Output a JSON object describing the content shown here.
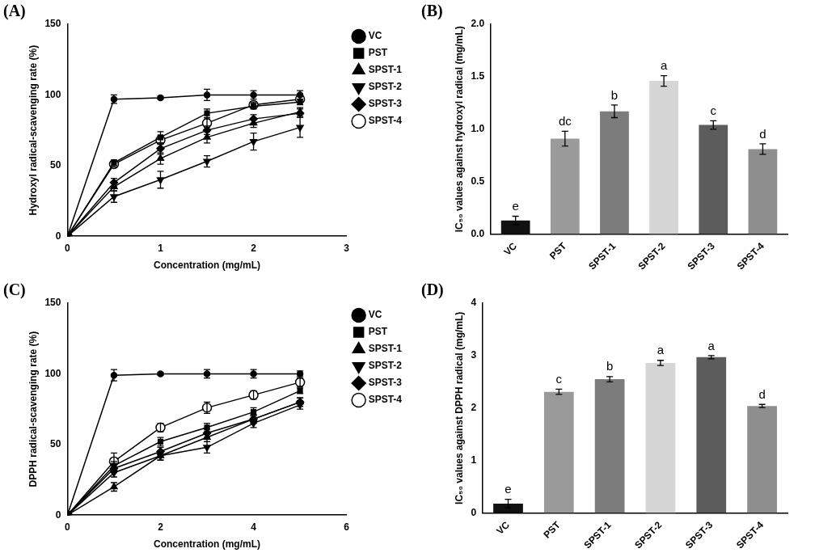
{
  "chart_data": [
    {
      "panel": "(A)",
      "type": "line",
      "x_label": "Concentration (mg/mL)",
      "y_label": "Hydroxyl radical-scavenging rate (%)",
      "x": [
        0,
        0.5,
        1,
        1.5,
        2,
        2.5
      ],
      "series": [
        {
          "name": "VC",
          "color": "#000000",
          "marker": "circle",
          "values": [
            0,
            97,
            98,
            100,
            100,
            100
          ],
          "errors": [
            0,
            3,
            1,
            4,
            3,
            3
          ]
        },
        {
          "name": "PST",
          "color": "#000000",
          "marker": "square",
          "values": [
            0,
            52,
            70,
            87,
            92,
            95
          ],
          "errors": [
            0,
            2,
            4,
            3,
            2,
            2
          ]
        },
        {
          "name": "SPST-1",
          "color": "#000000",
          "marker": "triangle",
          "values": [
            0,
            35,
            55,
            70,
            80,
            88
          ],
          "errors": [
            0,
            3,
            4,
            4,
            3,
            3
          ]
        },
        {
          "name": "SPST-2",
          "color": "#000000",
          "marker": "triangle_down",
          "values": [
            0,
            28,
            40,
            53,
            67,
            77
          ],
          "errors": [
            0,
            4,
            6,
            4,
            6,
            7
          ]
        },
        {
          "name": "SPST-3",
          "color": "#000000",
          "marker": "diamond",
          "values": [
            0,
            38,
            62,
            75,
            83,
            87
          ],
          "errors": [
            0,
            3,
            4,
            3,
            3,
            3
          ]
        },
        {
          "name": "SPST-4",
          "color": "#000000",
          "marker": "open_circle",
          "values": [
            0,
            51,
            68,
            80,
            93,
            97
          ],
          "errors": [
            0,
            2,
            3,
            3,
            2,
            2
          ]
        }
      ],
      "xlim": [
        0,
        3
      ],
      "xticks": [
        0,
        1,
        2,
        3
      ],
      "ylim": [
        0,
        150
      ],
      "yticks": [
        0,
        50,
        100,
        150
      ],
      "legend": "right",
      "grid": false
    },
    {
      "panel": "(B)",
      "type": "bar",
      "y_label": "IC₅₀ values against hydroxyl radical (mg/mL)",
      "categories": [
        "VC",
        "PST",
        "SPST-1",
        "SPST-2",
        "SPST-3",
        "SPST-4"
      ],
      "values": [
        0.13,
        0.91,
        1.17,
        1.46,
        1.04,
        0.81
      ],
      "errors": [
        0.04,
        0.07,
        0.06,
        0.05,
        0.04,
        0.05
      ],
      "letters": [
        "e",
        "dc",
        "b",
        "a",
        "c",
        "d"
      ],
      "colors": [
        "#111111",
        "#9a9a9a",
        "#7c7c7c",
        "#d6d6d6",
        "#5c5c5c",
        "#8e8e8e"
      ],
      "ylim": [
        0,
        2
      ],
      "yticks": [
        {
          "value": 0,
          "label": "0.0"
        },
        {
          "value": 0.5,
          "label": "0.5"
        },
        {
          "value": 1,
          "label": "1.0"
        },
        {
          "value": 1.5,
          "label": "1.5"
        },
        {
          "value": 2,
          "label": "2.0"
        }
      ],
      "grid": false
    },
    {
      "panel": "(C)",
      "type": "line",
      "x_label": "Concentration (mg/mL)",
      "y_label": "DPPH radical-scavenging rate (%)",
      "x": [
        0,
        1,
        2,
        3,
        4,
        5
      ],
      "series": [
        {
          "name": "VC",
          "color": "#000000",
          "marker": "circle",
          "values": [
            0,
            99,
            100,
            100,
            100,
            100
          ],
          "errors": [
            0,
            4,
            1,
            3,
            3,
            2
          ]
        },
        {
          "name": "PST",
          "color": "#000000",
          "marker": "square",
          "values": [
            0,
            35,
            52,
            62,
            73,
            88
          ],
          "errors": [
            0,
            3,
            3,
            3,
            3,
            2
          ]
        },
        {
          "name": "SPST-1",
          "color": "#000000",
          "marker": "triangle",
          "values": [
            0,
            20,
            42,
            55,
            68,
            80
          ],
          "errors": [
            0,
            3,
            3,
            3,
            3,
            3
          ]
        },
        {
          "name": "SPST-2",
          "color": "#000000",
          "marker": "triangle_down",
          "values": [
            0,
            30,
            42,
            48,
            65,
            78
          ],
          "errors": [
            0,
            3,
            3,
            4,
            3,
            3
          ]
        },
        {
          "name": "SPST-3",
          "color": "#000000",
          "marker": "diamond",
          "values": [
            0,
            33,
            45,
            58,
            68,
            80
          ],
          "errors": [
            0,
            3,
            3,
            3,
            3,
            3
          ]
        },
        {
          "name": "SPST-4",
          "color": "#000000",
          "marker": "open_circle",
          "values": [
            0,
            38,
            62,
            76,
            85,
            94
          ],
          "errors": [
            0,
            6,
            3,
            4,
            3,
            3
          ]
        }
      ],
      "xlim": [
        0,
        6
      ],
      "xticks": [
        0,
        2,
        4,
        6
      ],
      "ylim": [
        0,
        150
      ],
      "yticks": [
        0,
        50,
        100,
        150
      ],
      "legend": "right",
      "grid": false
    },
    {
      "panel": "(D)",
      "type": "bar",
      "y_label": "IC₅₀ values against DPPH radical (mg/mL)",
      "categories": [
        "VC",
        "PST",
        "SPST-1",
        "SPST-2",
        "SPST-3",
        "SPST-4"
      ],
      "values": [
        0.18,
        2.31,
        2.55,
        2.86,
        2.97,
        2.04
      ],
      "errors": [
        0.08,
        0.05,
        0.05,
        0.05,
        0.03,
        0.03
      ],
      "letters": [
        "e",
        "c",
        "b",
        "a",
        "a",
        "d"
      ],
      "colors": [
        "#111111",
        "#9a9a9a",
        "#7c7c7c",
        "#d6d6d6",
        "#5c5c5c",
        "#8e8e8e"
      ],
      "ylim": [
        0,
        4
      ],
      "yticks": [
        0,
        1,
        2,
        3,
        4
      ],
      "grid": false
    }
  ]
}
